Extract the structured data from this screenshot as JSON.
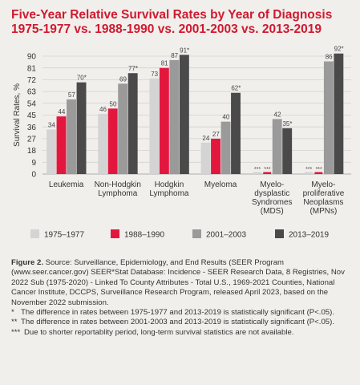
{
  "title_line1": "Five-Year Relative Survival Rates by Year of Diagnosis",
  "title_line2": "1975-1977 vs. 1988-1990 vs. 2001-2003 vs. 2013-2019",
  "colors": {
    "title": "#d0192f",
    "s1": "#d4d4d4",
    "s2": "#e3173e",
    "s3": "#9a9a9a",
    "s4": "#4a4a4a"
  },
  "chart_data": {
    "type": "bar",
    "ylabel": "Survival Rates, %",
    "ylim": [
      0,
      90
    ],
    "yticks": [
      0,
      9,
      18,
      27,
      36,
      45,
      54,
      63,
      72,
      81,
      90
    ],
    "grid": true,
    "legend_position": "bottom",
    "categories": [
      [
        "Leukemia"
      ],
      [
        "Non-Hodgkin",
        "Lymphoma"
      ],
      [
        "Hodgkin",
        "Lymphoma"
      ],
      [
        "Myeloma"
      ],
      [
        "Myelo-",
        "dysplastic",
        "Syndromes",
        "(MDS)"
      ],
      [
        "Myelo-",
        "proliferative",
        "Neoplasms",
        "(MPNs)"
      ]
    ],
    "series": [
      {
        "name": "1975–1977",
        "values": [
          34,
          46,
          73,
          24,
          null,
          null
        ],
        "labels": [
          "34",
          "46",
          "73",
          "24",
          "***",
          "***"
        ]
      },
      {
        "name": "1988–1990",
        "values": [
          44,
          50,
          81,
          27,
          null,
          null
        ],
        "labels": [
          "44",
          "50",
          "81",
          "27",
          "***",
          "***"
        ]
      },
      {
        "name": "2001–2003",
        "values": [
          57,
          69,
          87,
          40,
          42,
          86
        ],
        "labels": [
          "57",
          "69",
          "87",
          "40",
          "42",
          "86"
        ]
      },
      {
        "name": "2013–2019",
        "values": [
          70,
          77,
          91,
          62,
          35,
          92
        ],
        "labels": [
          "70*",
          "77*",
          "91*",
          "62*",
          "35*",
          "92*"
        ]
      }
    ]
  },
  "caption": {
    "figure_label": "Figure 2.",
    "text": " Source: Surveillance, Epidemiology, and End Results (SEER Program (www.seer.cancer.gov) SEER*Stat Database: Incidence - SEER Research Data, 8 Registries, Nov 2022 Sub (1975-2020) - Linked To County Attributes - Total U.S., 1969-2021 Counties, National Cancer Institute, DCCPS, Surveillance Research Program, released April 2023, based on the November 2022 submission.",
    "notes": [
      {
        "mark": "*",
        "text": "The difference in rates between 1975-1977 and 2013-2019 is statistically significant (P<.05)."
      },
      {
        "mark": "**",
        "text": "The difference in rates between 2001-2003 and 2013-2019 is statistically significant (P<.05)."
      },
      {
        "mark": "***",
        "text": "Due to shorter reportablity period, long-term survival statistics are not available."
      }
    ]
  }
}
